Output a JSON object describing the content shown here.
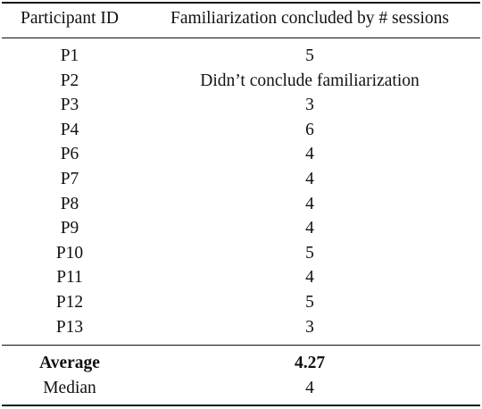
{
  "table": {
    "headers": [
      "Participant ID",
      "Familiarization concluded by # sessions"
    ],
    "rows": [
      [
        "P1",
        "5"
      ],
      [
        "P2",
        "Didn’t conclude familiarization"
      ],
      [
        "P3",
        "3"
      ],
      [
        "P4",
        "6"
      ],
      [
        "P6",
        "4"
      ],
      [
        "P7",
        "4"
      ],
      [
        "P8",
        "4"
      ],
      [
        "P9",
        "4"
      ],
      [
        "P10",
        "5"
      ],
      [
        "P11",
        "4"
      ],
      [
        "P12",
        "5"
      ],
      [
        "P13",
        "3"
      ]
    ],
    "summary": [
      {
        "label": "Average",
        "value": "4.27"
      },
      {
        "label": "Median",
        "value": "4"
      }
    ]
  }
}
